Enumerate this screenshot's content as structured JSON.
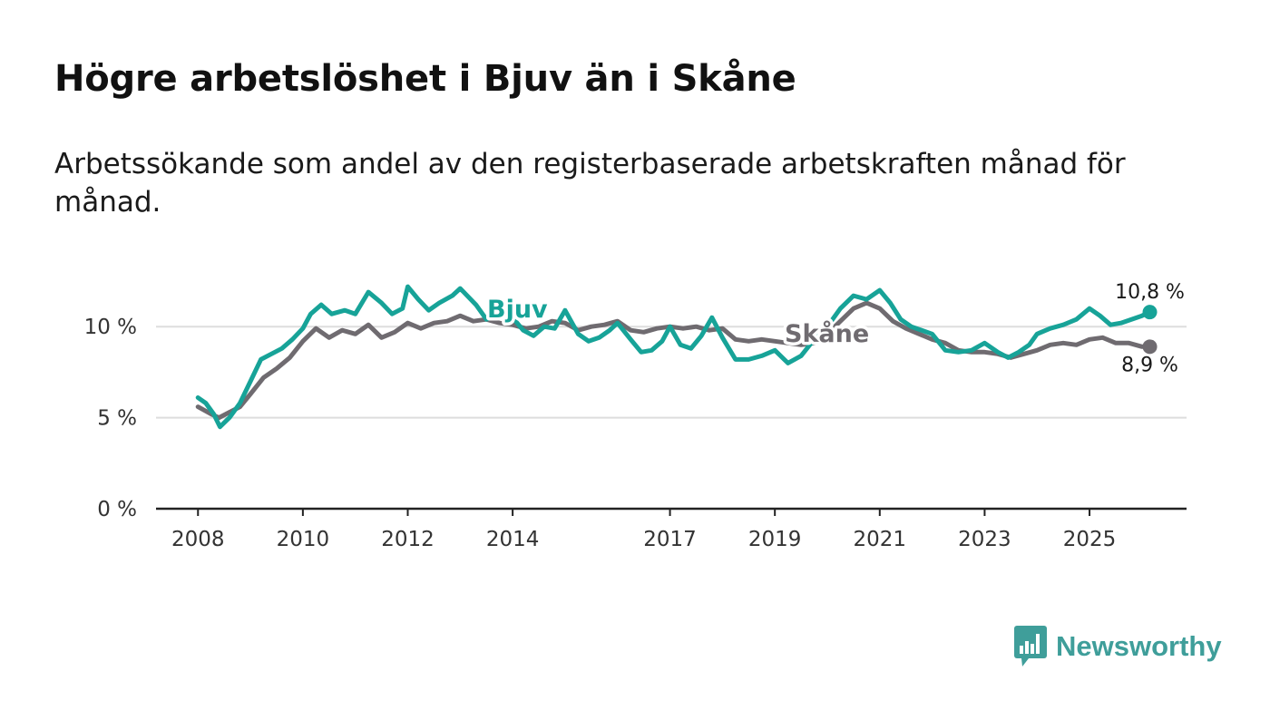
{
  "title": "Högre arbetslöshet i Bjuv än i Skåne",
  "subtitle": "Arbetssökande som andel av den registerbaserade arbetskraften månad för månad.",
  "logo": {
    "text": "Newsworthy",
    "icon": "newsworthy-bar-chart-icon"
  },
  "colors": {
    "bjuv": "#17a398",
    "skane": "#6f6b70",
    "grid": "#dddddd",
    "axis": "#222222"
  },
  "chart_data": {
    "type": "line",
    "title": "Högre arbetslöshet i Bjuv än i Skåne",
    "xlabel": "",
    "ylabel": "",
    "ylim": [
      0,
      13
    ],
    "xlim": [
      2007.2,
      2026.85
    ],
    "y_ticks": [
      {
        "value": 0,
        "label": "0 %"
      },
      {
        "value": 5,
        "label": "5 %"
      },
      {
        "value": 10,
        "label": "10 %"
      }
    ],
    "x_ticks": [
      {
        "value": 2008,
        "label": "2008"
      },
      {
        "value": 2010,
        "label": "2010"
      },
      {
        "value": 2012,
        "label": "2012"
      },
      {
        "value": 2014,
        "label": "2014"
      },
      {
        "value": 2017,
        "label": "2017"
      },
      {
        "value": 2019,
        "label": "2019"
      },
      {
        "value": 2021,
        "label": "2021"
      },
      {
        "value": 2023,
        "label": "2023"
      },
      {
        "value": 2025,
        "label": "2025"
      }
    ],
    "series": [
      {
        "name": "Skåne",
        "label": "Skåne",
        "end_label": "8,9 %",
        "color": "#6f6b70",
        "points": [
          [
            2008.0,
            5.6
          ],
          [
            2008.25,
            5.2
          ],
          [
            2008.4,
            5.0
          ],
          [
            2008.6,
            5.3
          ],
          [
            2008.8,
            5.6
          ],
          [
            2009.0,
            6.3
          ],
          [
            2009.25,
            7.2
          ],
          [
            2009.5,
            7.7
          ],
          [
            2009.75,
            8.3
          ],
          [
            2010.0,
            9.2
          ],
          [
            2010.25,
            9.9
          ],
          [
            2010.5,
            9.4
          ],
          [
            2010.75,
            9.8
          ],
          [
            2011.0,
            9.6
          ],
          [
            2011.25,
            10.1
          ],
          [
            2011.5,
            9.4
          ],
          [
            2011.75,
            9.7
          ],
          [
            2012.0,
            10.2
          ],
          [
            2012.25,
            9.9
          ],
          [
            2012.5,
            10.2
          ],
          [
            2012.75,
            10.3
          ],
          [
            2013.0,
            10.6
          ],
          [
            2013.25,
            10.3
          ],
          [
            2013.5,
            10.4
          ],
          [
            2013.75,
            10.2
          ],
          [
            2014.0,
            10.1
          ],
          [
            2014.25,
            9.9
          ],
          [
            2014.5,
            10.0
          ],
          [
            2014.75,
            10.3
          ],
          [
            2015.0,
            10.2
          ],
          [
            2015.25,
            9.8
          ],
          [
            2015.5,
            10.0
          ],
          [
            2015.75,
            10.1
          ],
          [
            2016.0,
            10.3
          ],
          [
            2016.25,
            9.8
          ],
          [
            2016.5,
            9.7
          ],
          [
            2016.75,
            9.9
          ],
          [
            2017.0,
            10.0
          ],
          [
            2017.25,
            9.9
          ],
          [
            2017.5,
            10.0
          ],
          [
            2017.75,
            9.8
          ],
          [
            2018.0,
            9.9
          ],
          [
            2018.25,
            9.3
          ],
          [
            2018.5,
            9.2
          ],
          [
            2018.75,
            9.3
          ],
          [
            2019.0,
            9.2
          ],
          [
            2019.25,
            9.1
          ],
          [
            2019.5,
            9.0
          ],
          [
            2019.75,
            9.1
          ],
          [
            2020.0,
            9.6
          ],
          [
            2020.25,
            10.3
          ],
          [
            2020.5,
            11.0
          ],
          [
            2020.75,
            11.3
          ],
          [
            2021.0,
            11.0
          ],
          [
            2021.25,
            10.3
          ],
          [
            2021.5,
            9.9
          ],
          [
            2021.75,
            9.6
          ],
          [
            2022.0,
            9.3
          ],
          [
            2022.25,
            9.1
          ],
          [
            2022.5,
            8.7
          ],
          [
            2022.75,
            8.6
          ],
          [
            2023.0,
            8.6
          ],
          [
            2023.25,
            8.5
          ],
          [
            2023.5,
            8.3
          ],
          [
            2023.75,
            8.5
          ],
          [
            2024.0,
            8.7
          ],
          [
            2024.25,
            9.0
          ],
          [
            2024.5,
            9.1
          ],
          [
            2024.75,
            9.0
          ],
          [
            2025.0,
            9.3
          ],
          [
            2025.25,
            9.4
          ],
          [
            2025.5,
            9.1
          ],
          [
            2025.75,
            9.1
          ],
          [
            2026.0,
            8.9
          ],
          [
            2026.15,
            8.9
          ]
        ]
      },
      {
        "name": "Bjuv",
        "label": "Bjuv",
        "end_label": "10,8 %",
        "color": "#17a398",
        "points": [
          [
            2008.0,
            6.1
          ],
          [
            2008.15,
            5.8
          ],
          [
            2008.3,
            5.2
          ],
          [
            2008.42,
            4.5
          ],
          [
            2008.6,
            5.0
          ],
          [
            2008.8,
            5.8
          ],
          [
            2009.0,
            7.0
          ],
          [
            2009.2,
            8.2
          ],
          [
            2009.4,
            8.5
          ],
          [
            2009.6,
            8.8
          ],
          [
            2009.8,
            9.3
          ],
          [
            2010.0,
            9.9
          ],
          [
            2010.15,
            10.7
          ],
          [
            2010.35,
            11.2
          ],
          [
            2010.55,
            10.7
          ],
          [
            2010.8,
            10.9
          ],
          [
            2011.0,
            10.7
          ],
          [
            2011.25,
            11.9
          ],
          [
            2011.5,
            11.3
          ],
          [
            2011.7,
            10.7
          ],
          [
            2011.9,
            11.0
          ],
          [
            2012.0,
            12.2
          ],
          [
            2012.2,
            11.5
          ],
          [
            2012.4,
            10.9
          ],
          [
            2012.6,
            11.3
          ],
          [
            2012.85,
            11.7
          ],
          [
            2013.0,
            12.1
          ],
          [
            2013.3,
            11.2
          ],
          [
            2013.5,
            10.4
          ],
          [
            2013.75,
            10.7
          ],
          [
            2014.0,
            10.5
          ],
          [
            2014.2,
            9.8
          ],
          [
            2014.4,
            9.5
          ],
          [
            2014.6,
            10.0
          ],
          [
            2014.8,
            9.9
          ],
          [
            2015.0,
            10.9
          ],
          [
            2015.25,
            9.6
          ],
          [
            2015.45,
            9.2
          ],
          [
            2015.65,
            9.4
          ],
          [
            2015.85,
            9.8
          ],
          [
            2016.0,
            10.2
          ],
          [
            2016.25,
            9.3
          ],
          [
            2016.45,
            8.6
          ],
          [
            2016.65,
            8.7
          ],
          [
            2016.85,
            9.2
          ],
          [
            2017.0,
            10.0
          ],
          [
            2017.2,
            9.0
          ],
          [
            2017.4,
            8.8
          ],
          [
            2017.6,
            9.5
          ],
          [
            2017.8,
            10.5
          ],
          [
            2018.0,
            9.4
          ],
          [
            2018.25,
            8.2
          ],
          [
            2018.5,
            8.2
          ],
          [
            2018.75,
            8.4
          ],
          [
            2019.0,
            8.7
          ],
          [
            2019.25,
            8.0
          ],
          [
            2019.5,
            8.4
          ],
          [
            2019.75,
            9.3
          ],
          [
            2020.0,
            10.0
          ],
          [
            2020.25,
            11.0
          ],
          [
            2020.5,
            11.7
          ],
          [
            2020.75,
            11.5
          ],
          [
            2021.0,
            12.0
          ],
          [
            2021.2,
            11.3
          ],
          [
            2021.4,
            10.4
          ],
          [
            2021.6,
            10.0
          ],
          [
            2021.8,
            9.8
          ],
          [
            2022.0,
            9.6
          ],
          [
            2022.25,
            8.7
          ],
          [
            2022.5,
            8.6
          ],
          [
            2022.75,
            8.7
          ],
          [
            2023.0,
            9.1
          ],
          [
            2023.25,
            8.6
          ],
          [
            2023.45,
            8.3
          ],
          [
            2023.65,
            8.6
          ],
          [
            2023.85,
            9.0
          ],
          [
            2024.0,
            9.6
          ],
          [
            2024.25,
            9.9
          ],
          [
            2024.5,
            10.1
          ],
          [
            2024.75,
            10.4
          ],
          [
            2025.0,
            11.0
          ],
          [
            2025.2,
            10.6
          ],
          [
            2025.4,
            10.1
          ],
          [
            2025.6,
            10.2
          ],
          [
            2025.8,
            10.4
          ],
          [
            2026.0,
            10.6
          ],
          [
            2026.15,
            10.8
          ]
        ]
      }
    ],
    "legend": "inline labels on lines"
  }
}
